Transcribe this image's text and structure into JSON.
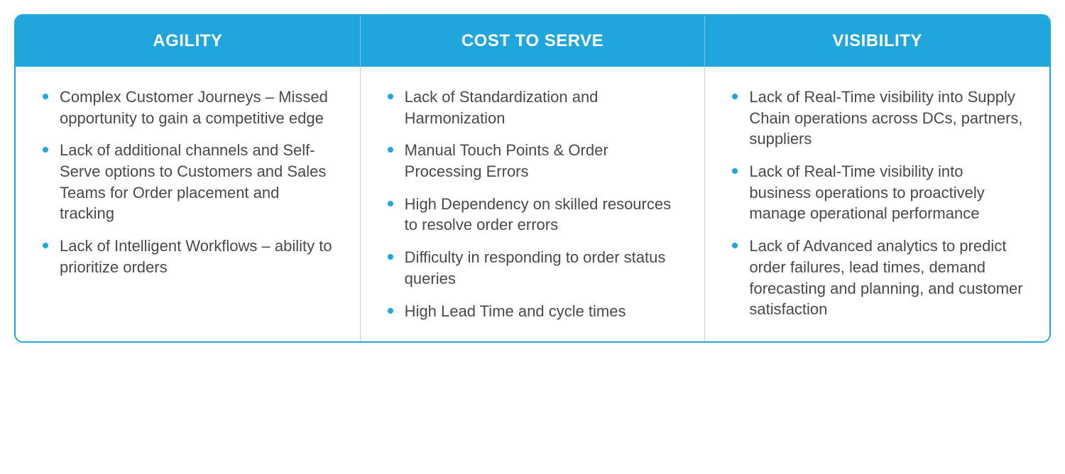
{
  "table": {
    "type": "comparison-table",
    "header_bg_color": "#1fa6dc",
    "header_text_color": "#ffffff",
    "border_color": "#1fa6dc",
    "divider_color": "#c9cfd3",
    "bullet_color": "#1fa6dc",
    "body_text_color": "#464a4e",
    "header_fontsize": 24,
    "body_fontsize": 22,
    "columns": [
      {
        "header": "AGILITY",
        "items": [
          "Complex Customer Journeys – Missed opportunity to gain a competitive edge",
          "Lack of additional channels and Self-Serve options to Customers and Sales Teams for Order placement and tracking",
          "Lack of Intelligent Workflows – ability to prioritize orders"
        ]
      },
      {
        "header": "COST TO SERVE",
        "items": [
          "Lack of Standardization and Harmonization",
          "Manual Touch Points & Order Processing Errors",
          "High Dependency on skilled resources to resolve order errors",
          "Difficulty in responding to order status queries",
          "High Lead Time and cycle times"
        ]
      },
      {
        "header": "VISIBILITY",
        "items": [
          "Lack of Real-Time visibility into Supply Chain operations across DCs, partners, suppliers",
          "Lack of Real-Time visibility into business operations to proactively manage operational performance",
          "Lack of Advanced analytics to predict order failures, lead times, demand forecasting and planning, and customer satisfaction"
        ]
      }
    ]
  }
}
